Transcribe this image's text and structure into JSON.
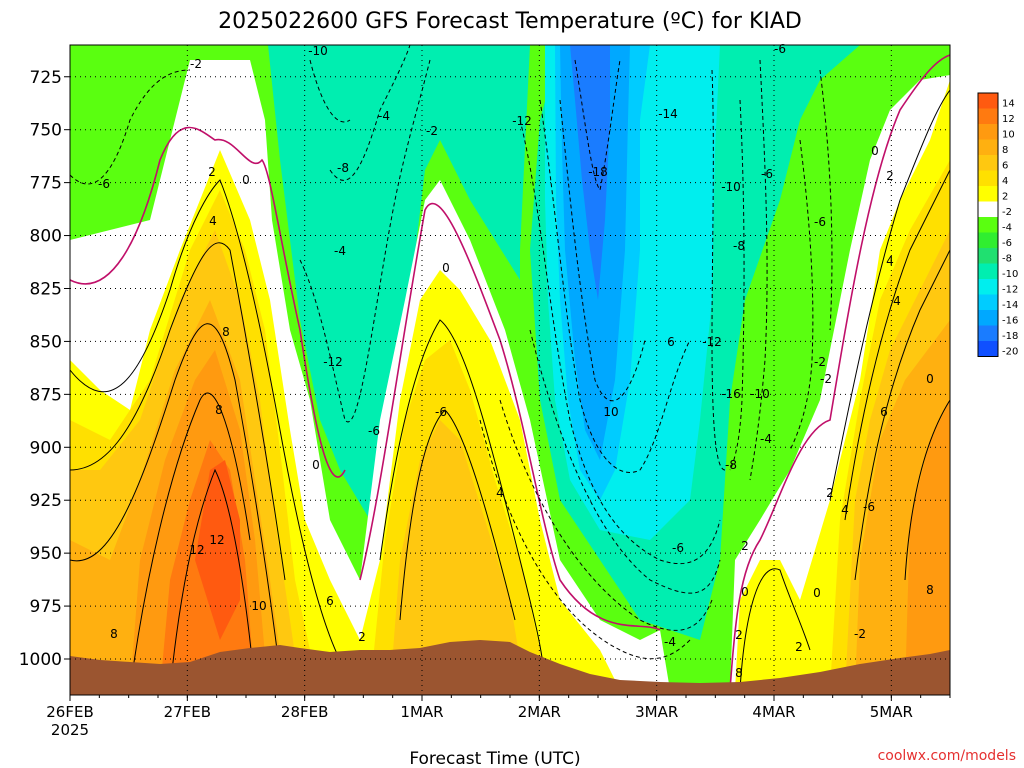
{
  "chart_data": {
    "type": "heatmap",
    "title": "2025022600 GFS Forecast Temperature (ºC) for KIAD",
    "xlabel": "Forecast Time (UTC)",
    "x_ticks": [
      "26FEB",
      "27FEB",
      "28FEB",
      "1MAR",
      "2MAR",
      "3MAR",
      "4MAR",
      "5MAR"
    ],
    "x_year_label": "2025",
    "xlim": [
      0,
      7.5
    ],
    "y_ticks": [
      "725",
      "750",
      "775",
      "800",
      "825",
      "850",
      "875",
      "900",
      "925",
      "950",
      "975",
      "1000"
    ],
    "ylim": [
      710,
      1017
    ],
    "colorbar": {
      "levels": [
        "14",
        "12",
        "10",
        "8",
        "6",
        "4",
        "2",
        "-2",
        "-4",
        "-6",
        "-8",
        "-10",
        "-12",
        "-14",
        "-16",
        "-18",
        "-20"
      ],
      "colors": [
        "#ff5a10",
        "#ff7a10",
        "#ff9a10",
        "#ffb010",
        "#ffc810",
        "#ffe000",
        "#ffff00",
        "#ffffff",
        "#5aff10",
        "#30ee30",
        "#20e070",
        "#00eeb0",
        "#00eeee",
        "#00ccff",
        "#00a8ff",
        "#1a7cff",
        "#1050ff"
      ]
    },
    "contour_labels": [
      "-2",
      "-10",
      "-6",
      "-4",
      "-6",
      "2",
      "0",
      "-8",
      "-2",
      "-12",
      "-14",
      "-18",
      "-10",
      "-6",
      "0",
      "2",
      "4",
      "-8",
      "-6",
      "0",
      "4",
      "-4",
      "4",
      "-2",
      "8",
      "6",
      "-12",
      "-12",
      "-2",
      "0",
      "10",
      "-16",
      "-10",
      "-6",
      "6",
      "-6",
      "-4",
      "8",
      "0",
      "-8",
      "4",
      "2",
      "4",
      "-6",
      "12",
      "12",
      "-6",
      "2",
      "10",
      "6",
      "0",
      "0",
      "8",
      "2",
      "8",
      "-2",
      "2",
      "-4",
      "2",
      "8"
    ],
    "ground_color": "#9b5530",
    "grid": true
  },
  "credit": "coolwx.com/models"
}
